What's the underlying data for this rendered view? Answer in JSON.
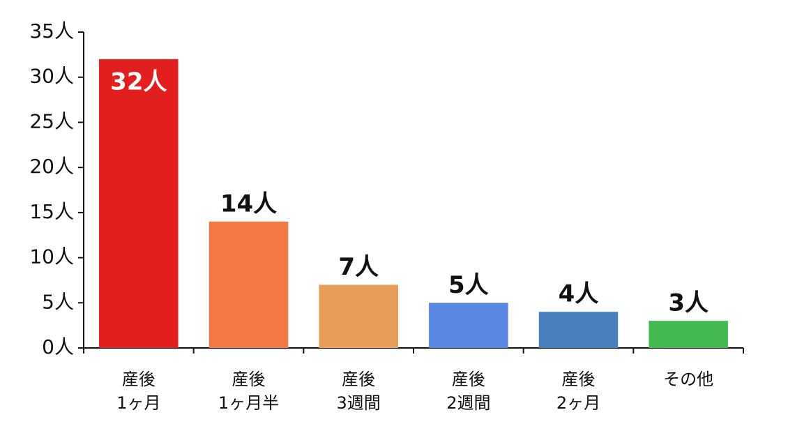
{
  "chart_data": {
    "type": "bar",
    "categories": [
      "産後\n1ヶ月",
      "産後\n1ヶ月半",
      "産後\n3週間",
      "産後\n2週間",
      "産後\n2ヶ月",
      "その他"
    ],
    "values": [
      32,
      14,
      7,
      5,
      4,
      3
    ],
    "value_labels": [
      "32人",
      "14人",
      "7人",
      "5人",
      "4人",
      "3人"
    ],
    "colors": [
      "#e31e1e",
      "#f47844",
      "#e89e5a",
      "#5a86e3",
      "#4a7fbf",
      "#44b952"
    ],
    "ylim": [
      0,
      35
    ],
    "yticks": [
      {
        "value": 0,
        "label": "0人"
      },
      {
        "value": 5,
        "label": "5人"
      },
      {
        "value": 10,
        "label": "10人"
      },
      {
        "value": 15,
        "label": "15人"
      },
      {
        "value": 20,
        "label": "20人"
      },
      {
        "value": 25,
        "label": "25人"
      },
      {
        "value": 30,
        "label": "30人"
      },
      {
        "value": 35,
        "label": "35人"
      }
    ]
  }
}
